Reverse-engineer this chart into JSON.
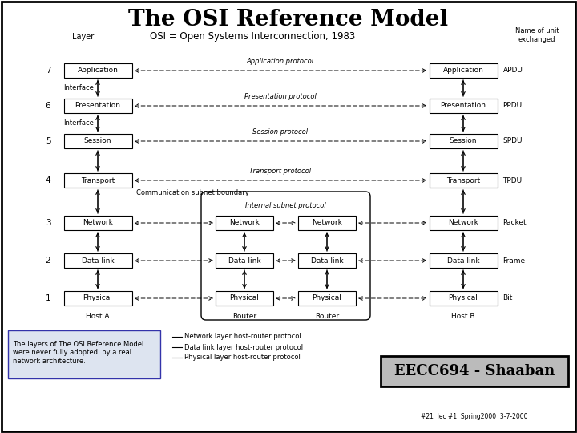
{
  "title": "The OSI Reference Model",
  "subtitle": "OSI = Open Systems Interconnection, 1983",
  "layer_label": "Layer",
  "name_exchanged": "Name of unit\nexchanged",
  "layers": [
    {
      "num": 7,
      "name": "Application",
      "protocol": "Application protocol",
      "pdu": "APDU"
    },
    {
      "num": 6,
      "name": "Presentation",
      "protocol": "Presentation protocol",
      "pdu": "PPDU"
    },
    {
      "num": 5,
      "name": "Session",
      "protocol": "Session protocol",
      "pdu": "SPDU"
    },
    {
      "num": 4,
      "name": "Transport",
      "protocol": "Transport protocol",
      "pdu": "TPDU"
    },
    {
      "num": 3,
      "name": "Network",
      "protocol": "Internal subnet protocol",
      "pdu": "Packet"
    },
    {
      "num": 2,
      "name": "Data link",
      "protocol": "",
      "pdu": "Frame"
    },
    {
      "num": 1,
      "name": "Physical",
      "protocol": "",
      "pdu": "Bit"
    }
  ],
  "host_a_label": "Host A",
  "host_b_label": "Host B",
  "router1_label": "Router",
  "router2_label": "Router",
  "comm_subnet_label": "Communication subnet boundary",
  "note_text": "The layers of The OSI Reference Model\nwere never fully adopted  by a real\nnetwork architecture.",
  "protocol_labels": [
    "Network layer host-router protocol",
    "Data link layer host-router protocol",
    "Physical layer host-router protocol"
  ],
  "footer": "EECC694 - Shaaban",
  "footer2": "#21  lec #1  Spring2000  3-7-2000",
  "bg_color": "#ffffff",
  "box_edge": "#000000",
  "text_color": "#000000"
}
